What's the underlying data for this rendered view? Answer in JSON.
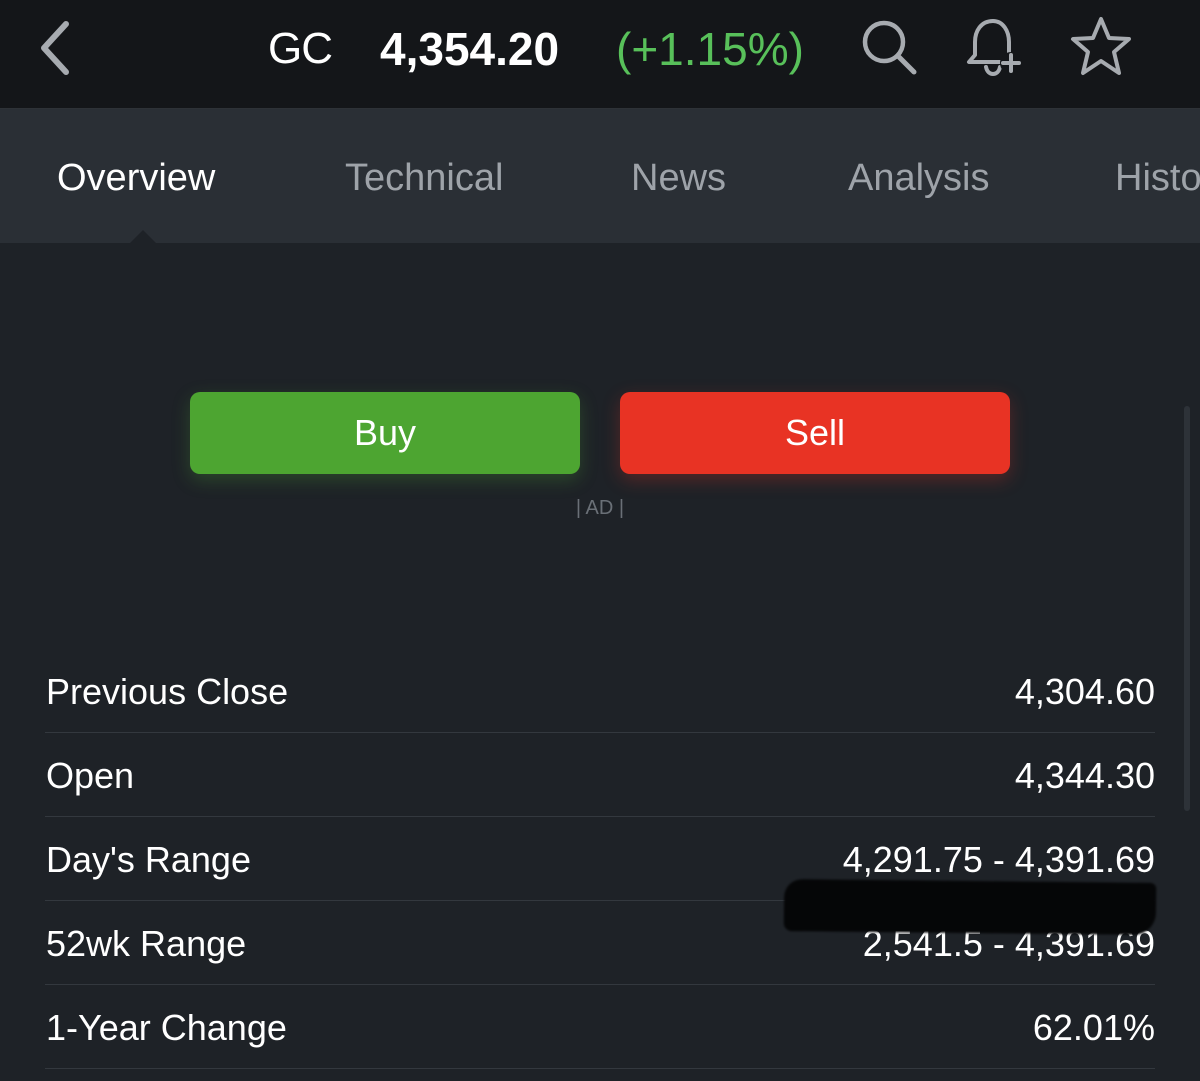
{
  "header": {
    "back_icon": "chevron-left-icon",
    "symbol": "GC",
    "price": "4,354.20",
    "change": "(+1.15%)",
    "change_color": "#58c05a",
    "icons": [
      "search-icon",
      "bell-plus-icon",
      "star-icon"
    ]
  },
  "tabs": [
    {
      "label": "Overview",
      "active": true
    },
    {
      "label": "Technical",
      "active": false
    },
    {
      "label": "News",
      "active": false
    },
    {
      "label": "Analysis",
      "active": false
    },
    {
      "label": "Historical Data",
      "active": false
    }
  ],
  "actions": {
    "buy_label": "Buy",
    "buy_color": "#4da531",
    "sell_label": "Sell",
    "sell_color": "#e83324",
    "ad_label": "| AD |"
  },
  "stats": [
    {
      "label": "Previous Close",
      "value": "4,304.60"
    },
    {
      "label": "Open",
      "value": "4,344.30"
    },
    {
      "label": "Day's Range",
      "value": "4,291.75 - 4,391.69"
    },
    {
      "label": "52wk Range",
      "value": "2,541.5 - 4,391.69"
    },
    {
      "label": "1-Year Change",
      "value": "62.01%"
    }
  ]
}
